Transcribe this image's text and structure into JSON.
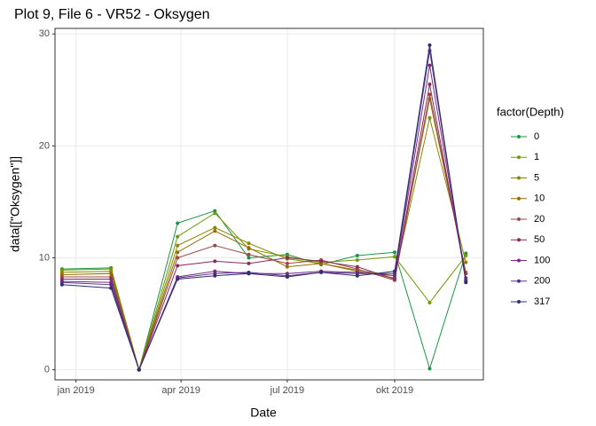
{
  "chart_data": {
    "type": "line",
    "title": "Plot 9, File 6 - VR52  -  Oksygen",
    "x_label": "Date",
    "y_label": "data[[\"Oksygen\"]]",
    "legend_title": "factor(Depth)",
    "x": [
      "2018-12-20",
      "2019-01-31",
      "2019-02-24",
      "2019-03-29",
      "2019-04-30",
      "2019-05-29",
      "2019-07-01",
      "2019-07-30",
      "2019-08-30",
      "2019-10-01",
      "2019-10-31",
      "2019-12-01"
    ],
    "xlim": [
      "2018-12-14",
      "2019-12-16"
    ],
    "xticks": [
      {
        "value": "2019-01-01",
        "label": "jan 2019"
      },
      {
        "value": "2019-04-01",
        "label": "apr 2019"
      },
      {
        "value": "2019-07-01",
        "label": "jul 2019"
      },
      {
        "value": "2019-10-01",
        "label": "okt 2019"
      }
    ],
    "ylim": [
      -0.9,
      30.5
    ],
    "yticks": [
      0,
      10,
      20,
      30
    ],
    "grid": true,
    "legend": "right",
    "series": [
      {
        "name": "0",
        "color": "#1a9641",
        "values": [
          9.0,
          9.1,
          0,
          13.1,
          14.2,
          10.0,
          10.3,
          9.4,
          10.2,
          10.5,
          0.1,
          10.4
        ]
      },
      {
        "name": "1",
        "color": "#6f9a00",
        "values": [
          8.9,
          9.0,
          0,
          11.9,
          14.0,
          10.8,
          10.1,
          9.6,
          9.8,
          10.1,
          6.0,
          10.2
        ]
      },
      {
        "name": "5",
        "color": "#8a8600",
        "values": [
          8.7,
          8.8,
          0,
          11.1,
          12.7,
          11.3,
          9.9,
          9.5,
          8.9,
          8.4,
          22.5,
          9.6
        ]
      },
      {
        "name": "10",
        "color": "#9a6b00",
        "values": [
          8.5,
          8.6,
          0,
          10.5,
          12.4,
          10.9,
          9.2,
          9.5,
          8.8,
          8.2,
          24.2,
          8.7
        ]
      },
      {
        "name": "20",
        "color": "#9a4848",
        "values": [
          8.3,
          8.3,
          0,
          10.0,
          11.1,
          10.3,
          9.5,
          9.8,
          9.0,
          8.0,
          24.6,
          8.6
        ]
      },
      {
        "name": "50",
        "color": "#8c2a5a",
        "values": [
          8.1,
          8.1,
          0,
          9.3,
          9.7,
          9.5,
          10.0,
          9.7,
          9.2,
          8.1,
          25.5,
          8.2
        ]
      },
      {
        "name": "100",
        "color": "#7a2a80",
        "values": [
          7.9,
          7.8,
          0,
          8.3,
          8.8,
          8.6,
          8.6,
          8.8,
          8.7,
          8.4,
          27.2,
          8.0
        ]
      },
      {
        "name": "200",
        "color": "#57308f",
        "values": [
          7.8,
          7.6,
          0,
          8.2,
          8.6,
          8.7,
          8.4,
          8.7,
          8.6,
          8.6,
          28.5,
          7.9
        ]
      },
      {
        "name": "317",
        "color": "#2d2f6e",
        "values": [
          7.6,
          7.3,
          0,
          8.1,
          8.4,
          8.6,
          8.3,
          8.7,
          8.4,
          8.8,
          29.0,
          7.8
        ]
      }
    ]
  }
}
